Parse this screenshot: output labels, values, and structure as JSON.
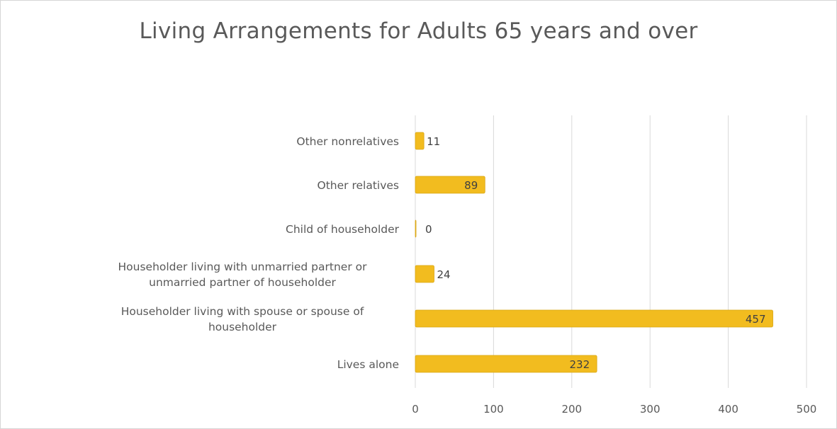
{
  "chart_data": {
    "type": "bar",
    "orientation": "horizontal",
    "title": "Living Arrangements for Adults 65 years and over",
    "categories": [
      [
        "Other nonrelatives"
      ],
      [
        "Other relatives"
      ],
      [
        "Child of householder"
      ],
      [
        "Householder living with unmarried partner or",
        "unmarried partner of householder"
      ],
      [
        "Householder living with spouse or spouse of",
        "householder"
      ],
      [
        "Lives alone"
      ]
    ],
    "values": [
      11,
      89,
      0,
      24,
      457,
      232
    ],
    "data_labels": [
      "11",
      "89",
      "0",
      "24",
      "457",
      "232"
    ],
    "xlim": [
      0,
      500
    ],
    "xticks": [
      "0",
      "100",
      "200",
      "300",
      "400",
      "500"
    ],
    "grid": true,
    "legend": "none",
    "colors": {
      "bar": "#f2bc1f",
      "bar_edge": "#d9a514",
      "grid": "#d9d9d9",
      "text": "#595959",
      "title": "#595959"
    }
  }
}
